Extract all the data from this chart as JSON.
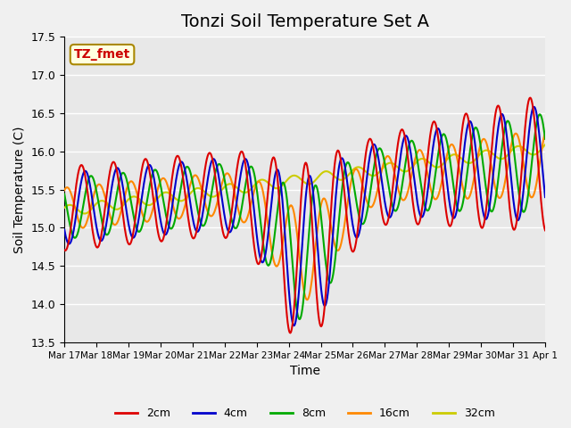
{
  "title": "Tonzi Soil Temperature Set A",
  "xlabel": "Time",
  "ylabel": "Soil Temperature (C)",
  "annotation": "TZ_fmet",
  "ylim": [
    13.5,
    17.5
  ],
  "yticks": [
    13.5,
    14.0,
    14.5,
    15.0,
    15.5,
    16.0,
    16.5,
    17.0,
    17.5
  ],
  "xtick_labels": [
    "Mar 17",
    "Mar 18",
    "Mar 19",
    "Mar 20",
    "Mar 21",
    "Mar 22",
    "Mar 23",
    "Mar 24",
    "Mar 25",
    "Mar 26",
    "Mar 27",
    "Mar 28",
    "Mar 29",
    "Mar 30",
    "Mar 31",
    "Apr 1"
  ],
  "colors": {
    "2cm": "#dd0000",
    "4cm": "#0000cc",
    "8cm": "#00aa00",
    "16cm": "#ff8800",
    "32cm": "#cccc00"
  },
  "background_color": "#e8e8e8",
  "grid_color": "#ffffff",
  "title_fontsize": 14,
  "label_fontsize": 10
}
